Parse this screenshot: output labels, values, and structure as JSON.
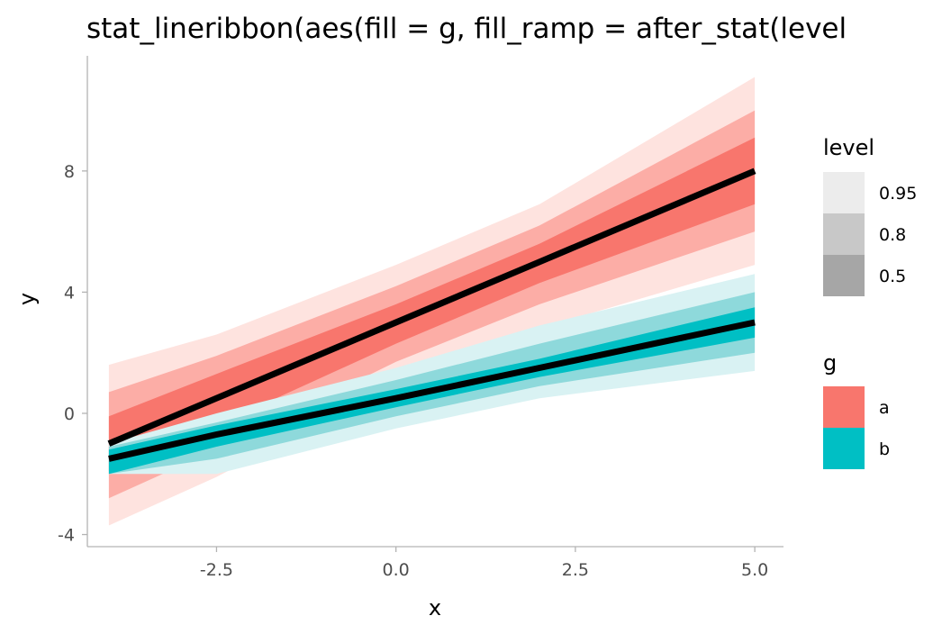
{
  "chart_data": {
    "type": "area",
    "title": "stat_lineribbon(aes(fill = g, fill_ramp = after_stat(level",
    "xlabel": "x",
    "ylabel": "y",
    "xlim": [
      -4.3,
      5.4
    ],
    "ylim": [
      -4.4,
      11.8
    ],
    "x_ticks": [
      -2.5,
      0.0,
      2.5,
      5.0
    ],
    "x_tick_labels": [
      "-2.5",
      "0.0",
      "2.5",
      "5.0"
    ],
    "y_ticks": [
      -4,
      0,
      4,
      8
    ],
    "y_tick_labels": [
      "-4",
      "0",
      "4",
      "8"
    ],
    "grid": false,
    "legends": [
      {
        "title": "level",
        "placement": "right",
        "entries": [
          {
            "label": "0.95",
            "color": "#ececec"
          },
          {
            "label": "0.8",
            "color": "#c8c8c8"
          },
          {
            "label": "0.5",
            "color": "#a6a6a6"
          }
        ]
      },
      {
        "title": "g",
        "placement": "right",
        "entries": [
          {
            "label": "a",
            "color": "#f8766d"
          },
          {
            "label": "b",
            "color": "#00bfc4"
          }
        ]
      }
    ],
    "series": [
      {
        "name": "a",
        "color": "#f8766d",
        "x": [
          -4,
          -2.5,
          0,
          2,
          5
        ],
        "median": [
          -1.0,
          0.5,
          3.0,
          5.0,
          8.0
        ],
        "bands": [
          {
            "level": 0.95,
            "color": "#fee3df",
            "lower": [
              -3.7,
              -2.1,
              1.0,
              2.8,
              4.9
            ],
            "upper": [
              1.6,
              2.6,
              4.9,
              6.9,
              11.1
            ]
          },
          {
            "level": 0.8,
            "color": "#fcada6",
            "lower": [
              -2.8,
              -1.2,
              1.7,
              3.6,
              6.0
            ],
            "upper": [
              0.7,
              1.9,
              4.2,
              6.2,
              10.0
            ]
          },
          {
            "level": 0.5,
            "color": "#f8766d",
            "lower": [
              -1.9,
              -0.4,
              2.3,
              4.3,
              6.9
            ],
            "upper": [
              -0.1,
              1.3,
              3.6,
              5.6,
              9.1
            ]
          }
        ]
      },
      {
        "name": "b",
        "color": "#00bfc4",
        "x": [
          -4,
          -2.5,
          0,
          2,
          5
        ],
        "median": [
          -1.5,
          -0.7,
          0.5,
          1.5,
          3.0
        ],
        "bands": [
          {
            "level": 0.95,
            "color": "#d9f2f3",
            "lower": [
              -2.0,
              -2.0,
              -0.5,
              0.5,
              1.4
            ],
            "upper": [
              -1.0,
              0.0,
              1.5,
              2.9,
              4.6
            ]
          },
          {
            "level": 0.8,
            "color": "#8ed9db",
            "lower": [
              -2.0,
              -1.5,
              -0.1,
              0.9,
              2.0
            ],
            "upper": [
              -1.1,
              -0.3,
              1.1,
              2.3,
              4.0
            ]
          },
          {
            "level": 0.5,
            "color": "#00bfc4",
            "lower": [
              -2.0,
              -1.1,
              0.2,
              1.2,
              2.5
            ],
            "upper": [
              -1.2,
              -0.4,
              0.8,
              1.8,
              3.5
            ]
          }
        ]
      }
    ]
  }
}
